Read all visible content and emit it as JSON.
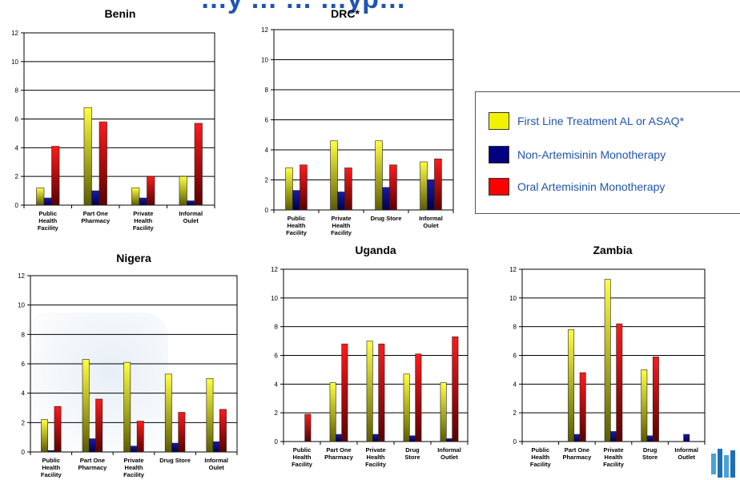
{
  "header": {
    "title": "…y … … …yp…"
  },
  "colors": {
    "first_line": "#f2f200",
    "non_art": "#000080",
    "oral_art": "#ff0000"
  },
  "legend": [
    {
      "key": "first_line",
      "label": "First Line Treatment AL or ASAQ*"
    },
    {
      "key": "non_art",
      "label": "Non-Artemisinin Monotherapy"
    },
    {
      "key": "oral_art",
      "label": "Oral Artemisinin Monotherapy"
    }
  ],
  "chart_data": [
    {
      "type": "bar",
      "title": "Benin",
      "ylim": [
        0,
        12
      ],
      "yticks": [
        0,
        2,
        4,
        6,
        8,
        10,
        12
      ],
      "categories": [
        [
          "Public",
          "Health",
          "Facility"
        ],
        [
          "Part One",
          "Pharmacy"
        ],
        [
          "Private",
          "Health",
          "Facility"
        ],
        [
          "Informal",
          "Oulet"
        ]
      ],
      "series": [
        {
          "name": "First Line Treatment AL or ASAQ*",
          "values": [
            1.2,
            6.8,
            1.2,
            2.0
          ]
        },
        {
          "name": "Non-Artemisinin Monotherapy",
          "values": [
            0.5,
            1.0,
            0.5,
            0.3
          ]
        },
        {
          "name": "Oral Artemisinin Monotherapy",
          "values": [
            4.1,
            5.8,
            2.0,
            5.7
          ]
        }
      ]
    },
    {
      "type": "bar",
      "title": "DRC*",
      "ylim": [
        0,
        12
      ],
      "yticks": [
        0,
        2,
        4,
        6,
        8,
        10,
        12
      ],
      "categories": [
        [
          "Public",
          "Health",
          "Facility"
        ],
        [
          "Private",
          "Health",
          "Facility"
        ],
        [
          "Drug Store"
        ],
        [
          "Informal",
          "Oulet"
        ]
      ],
      "series": [
        {
          "name": "First Line Treatment AL or ASAQ*",
          "values": [
            2.8,
            4.6,
            4.6,
            3.2
          ]
        },
        {
          "name": "Non-Artemisinin Monotherapy",
          "values": [
            1.3,
            1.2,
            1.5,
            2.0
          ]
        },
        {
          "name": "Oral Artemisinin Monotherapy",
          "values": [
            3.0,
            2.8,
            3.0,
            3.4
          ]
        }
      ]
    },
    {
      "type": "bar",
      "title": "Nigera",
      "ylim": [
        0,
        12
      ],
      "yticks": [
        0,
        2,
        4,
        6,
        8,
        10,
        12
      ],
      "categories": [
        [
          "Public",
          "Health",
          "Facility"
        ],
        [
          "Part One",
          "Pharmacy"
        ],
        [
          "Private",
          "Health",
          "Facility"
        ],
        [
          "Drug Store"
        ],
        [
          "Informal",
          "Oulet"
        ]
      ],
      "series": [
        {
          "name": "First Line Treatment AL or ASAQ*",
          "values": [
            2.2,
            6.3,
            6.1,
            5.3,
            5.0
          ]
        },
        {
          "name": "Non-Artemisinin Monotherapy",
          "values": [
            0.1,
            0.9,
            0.4,
            0.6,
            0.7
          ]
        },
        {
          "name": "Oral Artemisinin Monotherapy",
          "values": [
            3.1,
            3.6,
            2.1,
            2.7,
            2.9
          ]
        }
      ]
    },
    {
      "type": "bar",
      "title": "Uganda",
      "ylim": [
        0,
        12
      ],
      "yticks": [
        0,
        2,
        4,
        6,
        8,
        10,
        12
      ],
      "categories": [
        [
          "Public",
          "Health",
          "Facility"
        ],
        [
          "Part One",
          "Pharmacy"
        ],
        [
          "Private",
          "Health",
          "Facility"
        ],
        [
          "Drug",
          "Store"
        ],
        [
          "Informal",
          "Outlet"
        ]
      ],
      "series": [
        {
          "name": "First Line Treatment AL or ASAQ*",
          "values": [
            0,
            4.1,
            7.0,
            4.7,
            4.1
          ]
        },
        {
          "name": "Non-Artemisinin Monotherapy",
          "values": [
            0,
            0.5,
            0.5,
            0.4,
            0.2
          ]
        },
        {
          "name": "Oral Artemisinin Monotherapy",
          "values": [
            1.9,
            6.8,
            6.8,
            6.1,
            7.3
          ]
        }
      ]
    },
    {
      "type": "bar",
      "title": "Zambia",
      "ylim": [
        0,
        12
      ],
      "yticks": [
        0,
        2,
        4,
        6,
        8,
        10,
        12
      ],
      "categories": [
        [
          "Public",
          "Health",
          "Facility"
        ],
        [
          "Part One",
          "Pharmacy"
        ],
        [
          "Private",
          "Health",
          "Facility"
        ],
        [
          "Drug",
          "Store"
        ],
        [
          "Informal",
          "Outlet"
        ]
      ],
      "series": [
        {
          "name": "First Line Treatment AL or ASAQ*",
          "values": [
            0,
            7.8,
            11.3,
            5.0,
            0
          ]
        },
        {
          "name": "Non-Artemisinin Monotherapy",
          "values": [
            0,
            0.5,
            0.7,
            0.4,
            0.5
          ]
        },
        {
          "name": "Oral Artemisinin Monotherapy",
          "values": [
            0,
            4.8,
            8.2,
            5.9,
            0
          ]
        }
      ]
    }
  ]
}
